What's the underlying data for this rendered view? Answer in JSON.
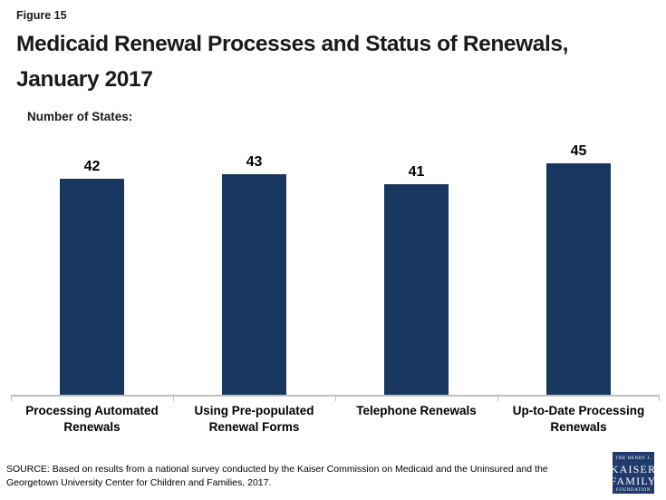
{
  "figure_label": "Figure 15",
  "title": "Medicaid Renewal Processes and Status of Renewals, January 2017",
  "axis_title": "Number of States:",
  "source": "SOURCE: Based on results from a national survey conducted by the Kaiser Commission on Medicaid and the Uninsured and the Georgetown University Center for Children and Families, 2017.",
  "logo": {
    "lines": [
      "THE HENRY J.",
      "KAISER",
      "FAMILY",
      "FOUNDATION"
    ],
    "bg_color": "#1F3A6B"
  },
  "colors": {
    "bar": "#17375E",
    "axis": "#BFBFBF",
    "text": "#1A1A1A"
  },
  "chart_data": {
    "type": "bar",
    "title": "Medicaid Renewal Processes and Status of Renewals, January 2017",
    "categories": [
      "Processing Automated Renewals",
      "Using Pre-populated Renewal Forms",
      "Telephone Renewals",
      "Up-to-Date Processing Renewals"
    ],
    "values": [
      42,
      43,
      41,
      45
    ],
    "xlabel": "",
    "ylabel": "Number of States:",
    "ylim": [
      0,
      50
    ],
    "grid": false,
    "data_labels": true,
    "legend": false
  }
}
